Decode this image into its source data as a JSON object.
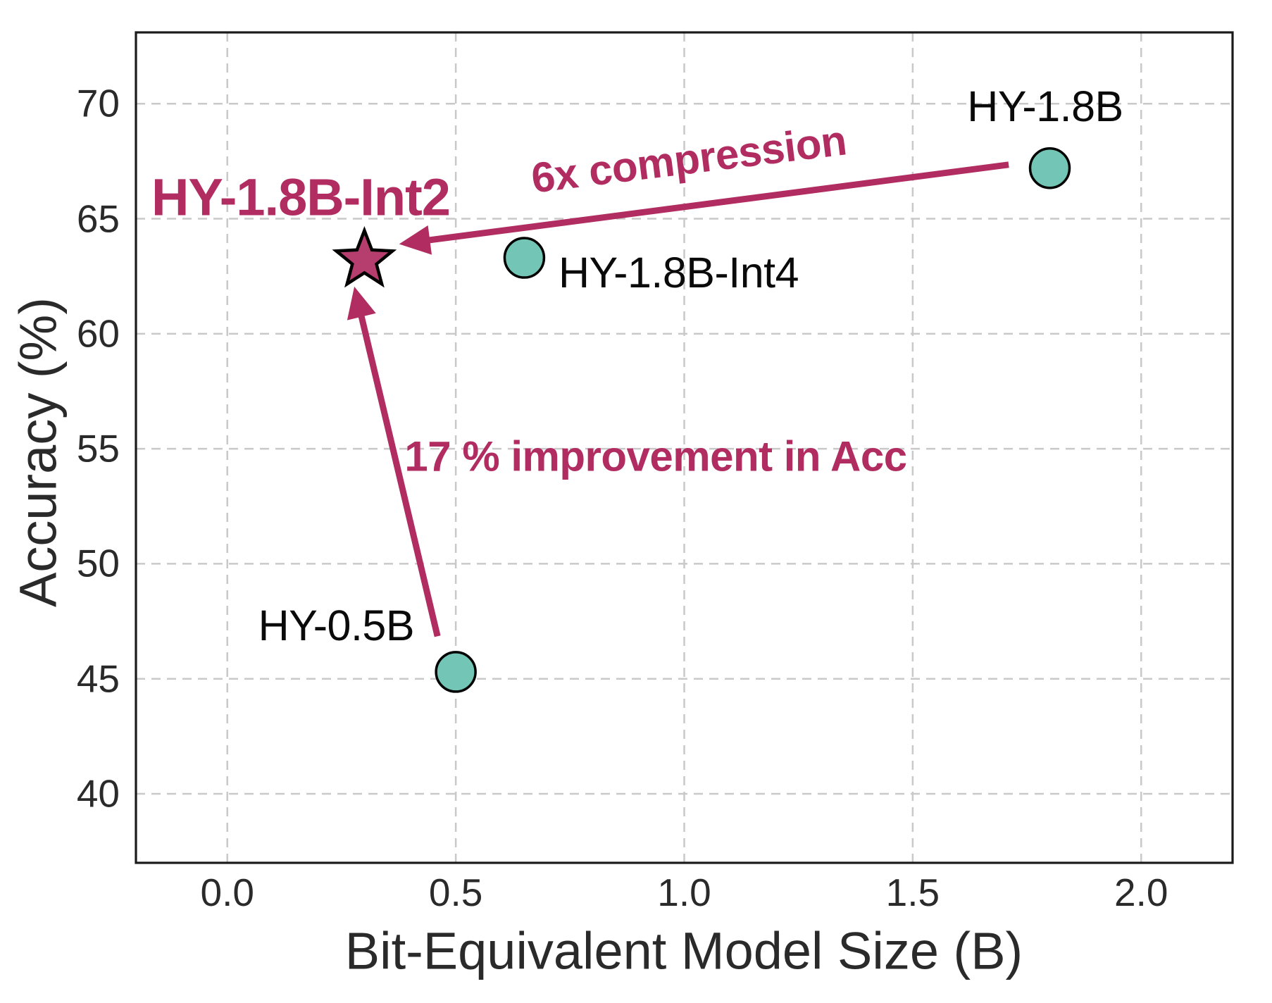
{
  "chart_data": {
    "type": "scatter",
    "title": "",
    "xlabel": "Bit-Equivalent Model Size (B)",
    "ylabel": "Accuracy (%)",
    "xlim": [
      -0.2,
      2.2
    ],
    "ylim": [
      37.0,
      73.1
    ],
    "grid": true,
    "legend": "none",
    "x_ticks": [
      0.0,
      0.5,
      1.0,
      1.5,
      2.0
    ],
    "x_tick_labels": [
      "0.0",
      "0.5",
      "1.0",
      "1.5",
      "2.0"
    ],
    "y_ticks": [
      40,
      45,
      50,
      55,
      60,
      65,
      70
    ],
    "y_tick_labels": [
      "40",
      "45",
      "50",
      "55",
      "60",
      "65",
      "70"
    ],
    "points": [
      {
        "name": "HY-1.8B",
        "x": 1.8,
        "y": 67.2,
        "marker": "circle"
      },
      {
        "name": "HY-1.8B-Int4",
        "x": 0.65,
        "y": 63.3,
        "marker": "circle"
      },
      {
        "name": "HY-0.5B",
        "x": 0.5,
        "y": 45.3,
        "marker": "circle"
      },
      {
        "name": "HY-1.8B-Int2",
        "x": 0.3,
        "y": 63.2,
        "marker": "star"
      }
    ],
    "annotations": [
      {
        "text": "6x compression",
        "arrow_from": {
          "x": 1.71,
          "y": 67.35
        },
        "arrow_to": {
          "x": 0.376,
          "y": 63.9
        }
      },
      {
        "text": "17 % improvement in Acc",
        "arrow_from": {
          "x": 0.46,
          "y": 46.85
        },
        "arrow_to": {
          "x": 0.278,
          "y": 62.05
        }
      }
    ],
    "colors": {
      "background": "#ffffff",
      "annotation": "#b12c60",
      "star": "#b53e6e",
      "point": "#73c6b5",
      "grid": "#c9c9c9",
      "spine": "#1a1a1a"
    }
  }
}
